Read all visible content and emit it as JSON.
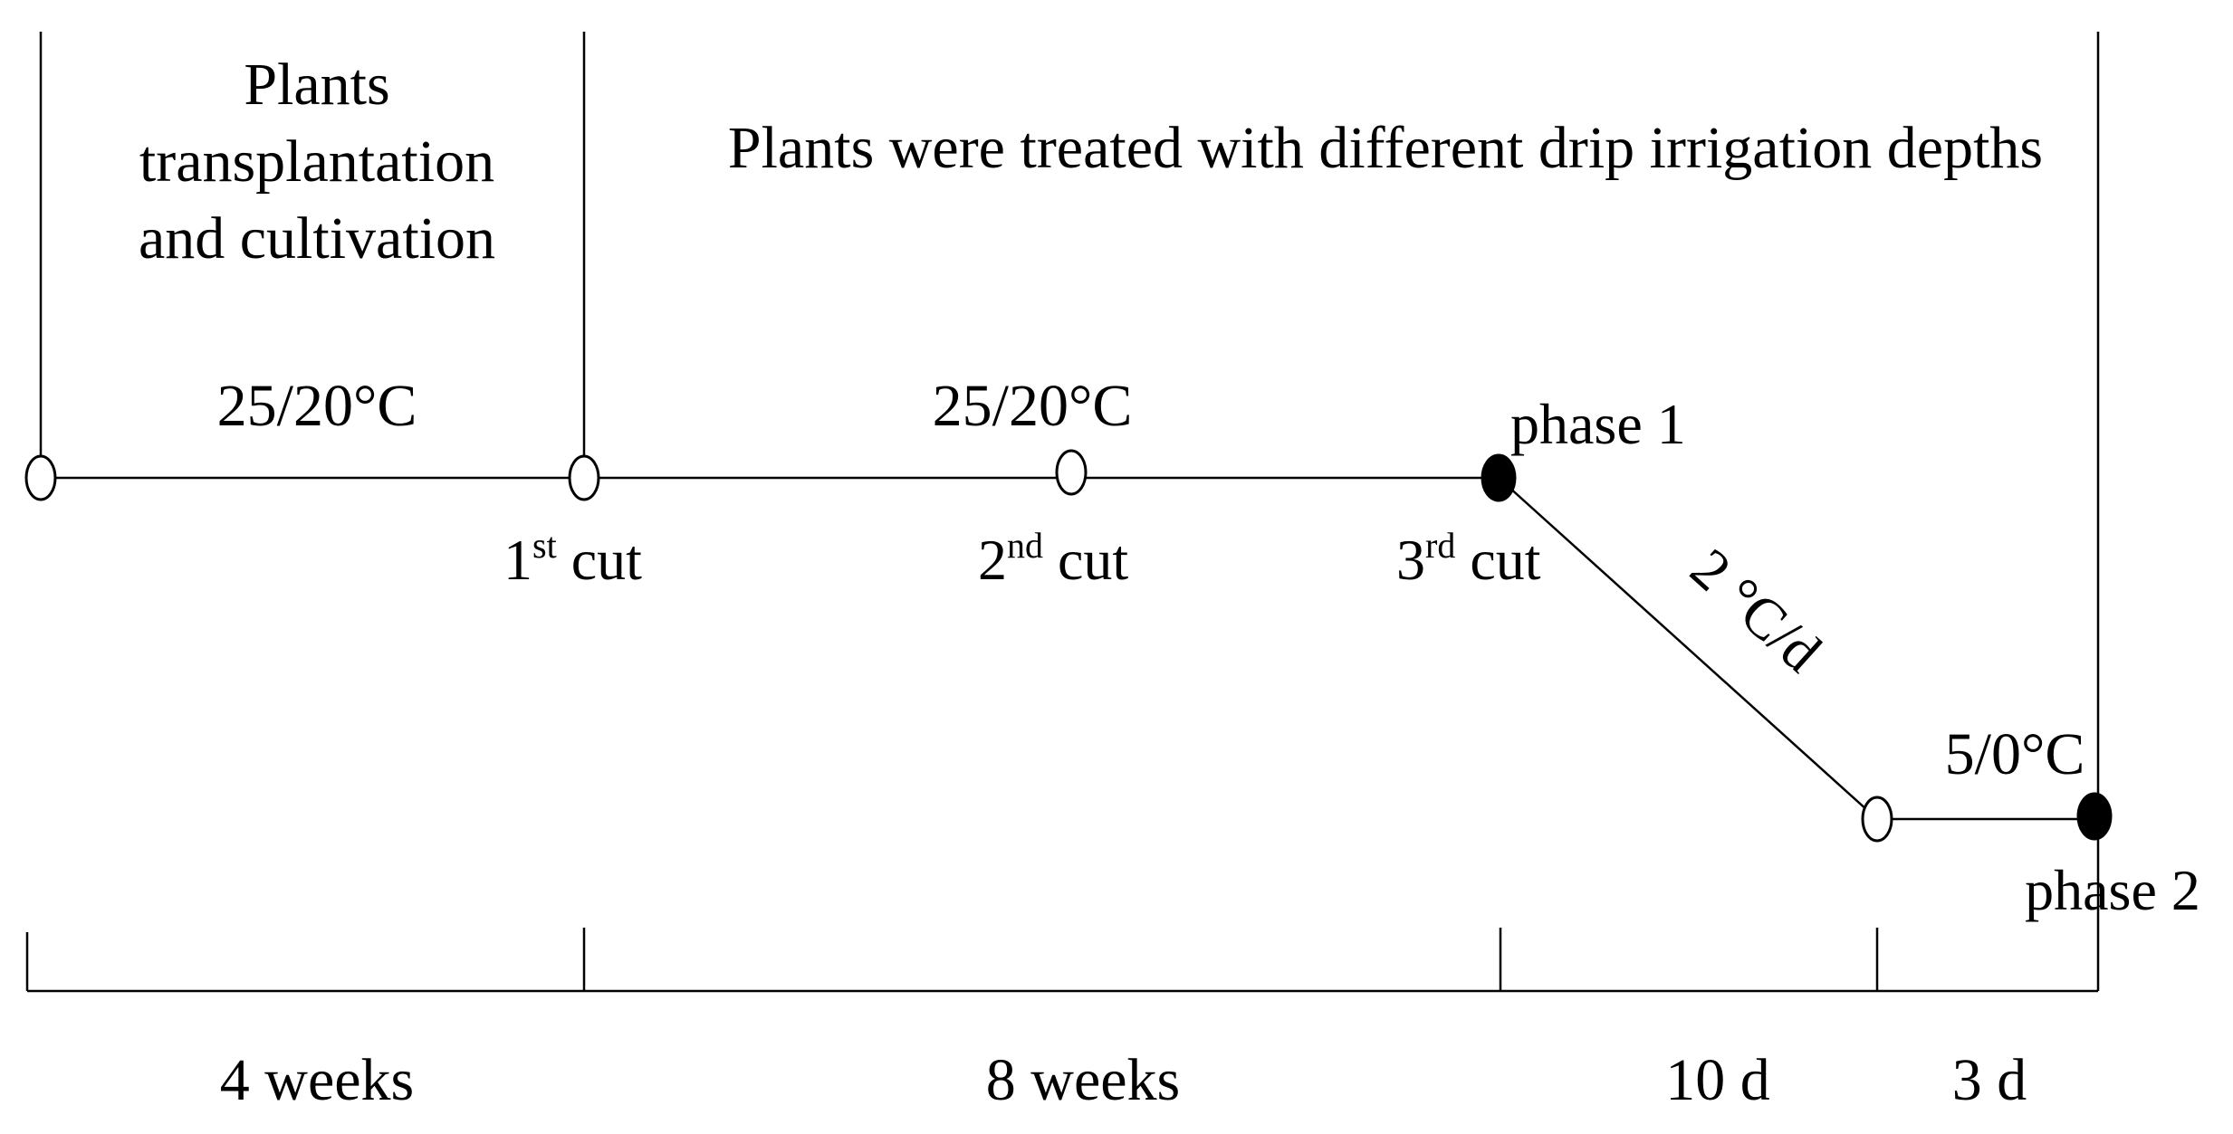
{
  "header": {
    "left_block": [
      "Plants",
      "transplantation",
      "and cultivation"
    ],
    "right_block": "Plants were treated with different drip irrigation depths"
  },
  "temperatures": {
    "first": "25/20°C",
    "second": "25/20°C",
    "low": "5/0°C"
  },
  "cuts": [
    {
      "number": "1",
      "suffix": "st",
      "word": " cut"
    },
    {
      "number": "2",
      "suffix": "nd",
      "word": " cut"
    },
    {
      "number": "3",
      "suffix": "rd",
      "word": " cut"
    }
  ],
  "phases": {
    "one": "phase 1",
    "two": "phase 2"
  },
  "ramp_rate": "2 °C/d",
  "durations": [
    "4 weeks",
    "8 weeks",
    "10 d",
    "3 d"
  ],
  "colors": {
    "line": "#000000",
    "open_marker_fill": "#ffffff",
    "filled_marker_fill": "#000000"
  }
}
